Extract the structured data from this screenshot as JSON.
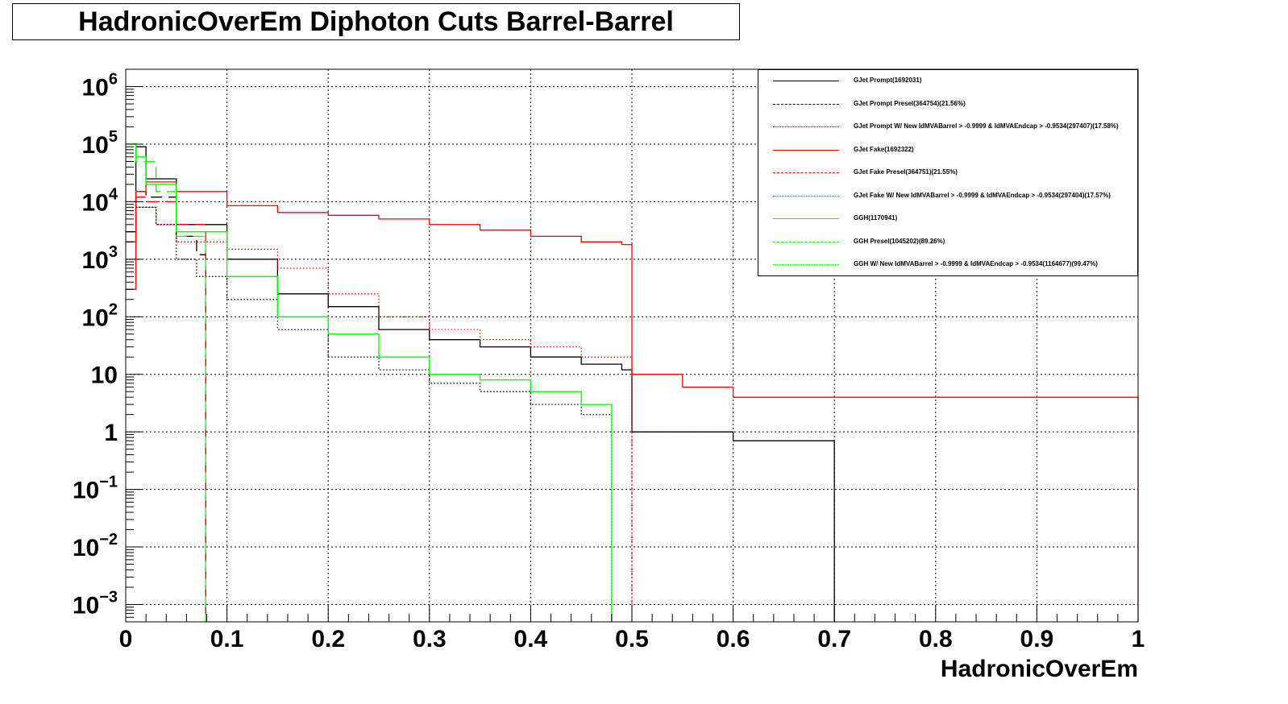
{
  "title": "HadronicOverEm Diphoton Cuts Barrel-Barrel",
  "chart_data": {
    "type": "line",
    "title": "HadronicOverEm Diphoton Cuts Barrel-Barrel",
    "xlabel": "HadronicOverEm",
    "ylabel": "",
    "xlim": [
      0,
      1
    ],
    "ylim": [
      0.0005,
      2000000
    ],
    "ylog": true,
    "grid": true,
    "legend_position": "top-right",
    "x_ticks": [
      "0",
      "0.1",
      "0.2",
      "0.3",
      "0.4",
      "0.5",
      "0.6",
      "0.7",
      "0.8",
      "0.9",
      "1"
    ],
    "y_ticks": [
      {
        "base": "10",
        "exp": "6"
      },
      {
        "base": "10",
        "exp": "5"
      },
      {
        "base": "10",
        "exp": "4"
      },
      {
        "base": "10",
        "exp": "3"
      },
      {
        "base": "10",
        "exp": "2"
      },
      {
        "base": "10",
        "exp": ""
      },
      {
        "base": "1",
        "exp": ""
      },
      {
        "base": "10",
        "exp": "−1"
      },
      {
        "base": "10",
        "exp": "−2"
      },
      {
        "base": "10",
        "exp": "−3"
      }
    ],
    "series": [
      {
        "name": "GJet Prompt(1692031)",
        "color": "#000000",
        "dash": "solid",
        "x": [
          0.0,
          0.01,
          0.02,
          0.05,
          0.1,
          0.15,
          0.2,
          0.25,
          0.3,
          0.35,
          0.4,
          0.45,
          0.49,
          0.5,
          0.6,
          0.7
        ],
        "y": [
          2000,
          90000,
          25000,
          4000,
          1000,
          250,
          150,
          60,
          40,
          30,
          20,
          15,
          12,
          1,
          0.7,
          0.7
        ]
      },
      {
        "name": "GJet Prompt Presel(364754)(21.56%)",
        "color": "#000000",
        "dash": "dashed",
        "x": [
          0.0,
          0.01,
          0.02,
          0.05,
          0.07,
          0.079
        ],
        "y": [
          3000,
          15000,
          12000,
          2500,
          1200,
          1000
        ]
      },
      {
        "name": "GJet Prompt W/ New IdMVABarrel > -0.9999 & IdMVAEndcap > -0.9534(297407)(17.58%)",
        "color": "#000000",
        "dash": "dotted",
        "x": [
          0.0,
          0.01,
          0.03,
          0.05,
          0.07,
          0.1,
          0.15,
          0.2,
          0.25,
          0.3,
          0.35,
          0.4,
          0.45,
          0.48
        ],
        "y": [
          2000,
          8000,
          4000,
          1000,
          500,
          200,
          60,
          20,
          12,
          7,
          5,
          3,
          2,
          1
        ]
      },
      {
        "name": "GJet Fake(1692322)",
        "color": "#ff0000",
        "dash": "solid",
        "x": [
          0.0,
          0.01,
          0.02,
          0.05,
          0.1,
          0.15,
          0.2,
          0.25,
          0.3,
          0.35,
          0.4,
          0.45,
          0.49,
          0.5,
          0.55,
          0.6,
          0.7,
          0.8,
          0.9,
          0.95,
          1.0
        ],
        "y": [
          300,
          15000,
          22000,
          15000,
          8500,
          6500,
          5800,
          5000,
          4000,
          3200,
          2500,
          2000,
          1800,
          10,
          6,
          4,
          4,
          4,
          4,
          4,
          4
        ]
      },
      {
        "name": "GJet Fake Presel(364751)(21.55%)",
        "color": "#ff0000",
        "dash": "dashed",
        "x": [
          0.0,
          0.01,
          0.02,
          0.05,
          0.079
        ],
        "y": [
          2000,
          12000,
          10000,
          4000,
          2000
        ]
      },
      {
        "name": "GJet Fake W/ New IdMVABarrel > -0.9999 & IdMVAEndcap > -0.9534(297404)(17.57%)",
        "color": "#ff0000",
        "dash": "dotted",
        "x": [
          0.0,
          0.01,
          0.03,
          0.05,
          0.1,
          0.15,
          0.2,
          0.25,
          0.3,
          0.35,
          0.4,
          0.45,
          0.5
        ],
        "y": [
          1000,
          8000,
          4000,
          2000,
          1500,
          700,
          250,
          100,
          60,
          40,
          30,
          20,
          15
        ]
      },
      {
        "name": "GGH(1170941)",
        "color": "#00ff00",
        "dash": "solid",
        "x": [
          0.0,
          0.01,
          0.02,
          0.05,
          0.1,
          0.15,
          0.2,
          0.25,
          0.3,
          0.35,
          0.4,
          0.45,
          0.48
        ],
        "y": [
          100000,
          60000,
          20000,
          3000,
          500,
          100,
          50,
          20,
          10,
          8,
          5,
          3,
          2
        ]
      },
      {
        "name": "GGH Presel(1045202)(89.26%)",
        "color": "#00ff00",
        "dash": "dashed",
        "x": [
          0.0,
          0.01,
          0.03,
          0.05,
          0.079
        ],
        "y": [
          100000,
          50000,
          15000,
          2500,
          1200
        ]
      },
      {
        "name": "GGH W/ New IdMVABarrel > -0.9999 & IdMVAEndcap > -0.9534(1164677)(99.47%)",
        "color": "#00ff00",
        "dash": "dotted",
        "x": [
          0.0,
          0.01,
          0.02,
          0.05,
          0.1,
          0.15,
          0.2,
          0.25,
          0.3,
          0.35,
          0.4,
          0.45,
          0.48
        ],
        "y": [
          100000,
          60000,
          20000,
          3000,
          500,
          100,
          50,
          20,
          10,
          8,
          5,
          3,
          2
        ]
      }
    ]
  }
}
